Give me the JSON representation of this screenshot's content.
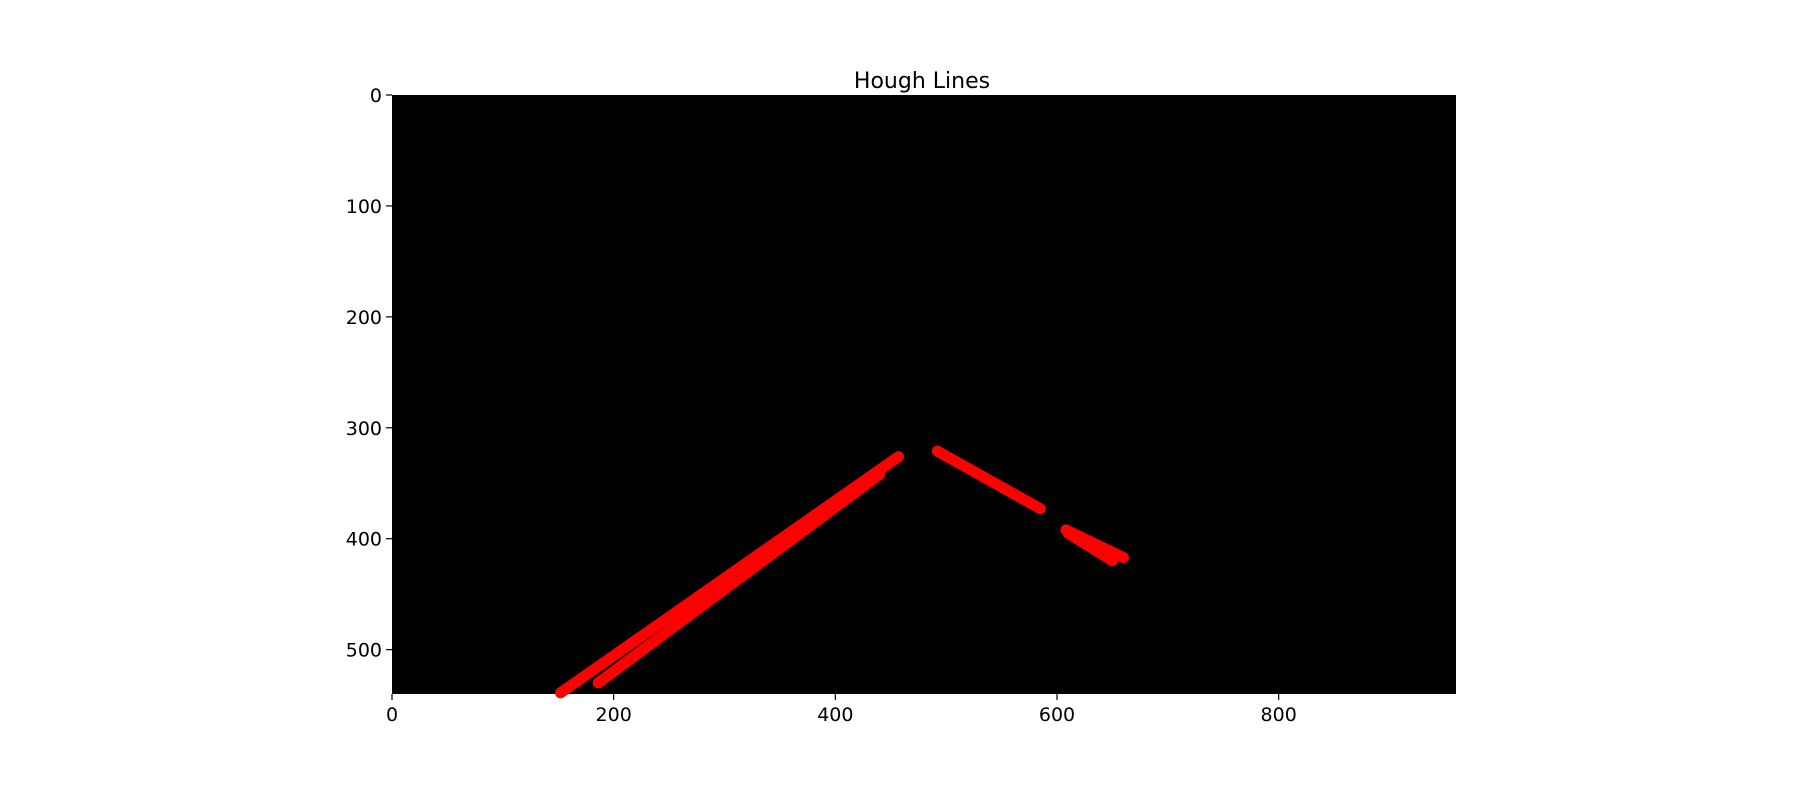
{
  "chart_data": {
    "type": "image",
    "title": "Hough Lines",
    "xlabel": "",
    "ylabel": "",
    "xlim": [
      0,
      960
    ],
    "ylim": [
      540,
      0
    ],
    "y_inverted": true,
    "grid": false,
    "x_ticks": [
      0,
      200,
      400,
      600,
      800
    ],
    "y_ticks": [
      0,
      100,
      200,
      300,
      400,
      500
    ],
    "background_color": "#000000",
    "line_color": "#ff0000",
    "segments": [
      {
        "x1": 152,
        "y1": 539,
        "x2": 457,
        "y2": 326
      },
      {
        "x1": 186,
        "y1": 530,
        "x2": 440,
        "y2": 342
      },
      {
        "x1": 492,
        "y1": 321,
        "x2": 585,
        "y2": 373
      },
      {
        "x1": 608,
        "y1": 392,
        "x2": 660,
        "y2": 417
      },
      {
        "x1": 610,
        "y1": 395,
        "x2": 650,
        "y2": 420
      }
    ]
  }
}
